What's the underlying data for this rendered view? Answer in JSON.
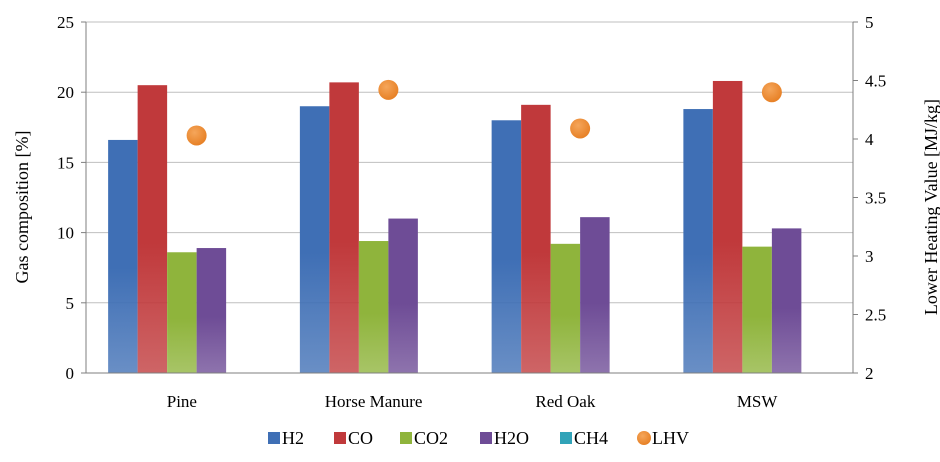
{
  "chart_data": {
    "type": "bar",
    "categories": [
      "Pine",
      "Horse Manure",
      "Red Oak",
      "MSW"
    ],
    "series": [
      {
        "name": "H2",
        "values": [
          16.6,
          19.0,
          18.0,
          18.8
        ],
        "color": "#3F6FB5"
      },
      {
        "name": "CO",
        "values": [
          20.5,
          20.7,
          19.1,
          20.8
        ],
        "color": "#C0393B"
      },
      {
        "name": "CO2",
        "values": [
          8.6,
          9.4,
          9.2,
          9.0
        ],
        "color": "#8FB43C"
      },
      {
        "name": "H2O",
        "values": [
          8.9,
          11.0,
          11.1,
          10.3
        ],
        "color": "#6E4C96"
      },
      {
        "name": "CH4",
        "values": [
          0,
          0,
          0,
          0
        ],
        "color": "#31A3B8"
      }
    ],
    "secondary_series": {
      "name": "LHV",
      "type": "scatter",
      "values": [
        4.03,
        4.42,
        4.09,
        4.4
      ],
      "color": "#E67E22"
    },
    "ylabel": "Gas composition [%]",
    "y2label": "Lower Heating Value [MJ/kg]",
    "ylim": [
      0,
      25
    ],
    "y_ticks": [
      0,
      5,
      10,
      15,
      20,
      25
    ],
    "y2lim": [
      2,
      5
    ],
    "y2_ticks": [
      "2",
      "2.5",
      "3",
      "3.5",
      "4",
      "4.5",
      "5"
    ],
    "grid": "horizontal",
    "legend_position": "bottom"
  }
}
